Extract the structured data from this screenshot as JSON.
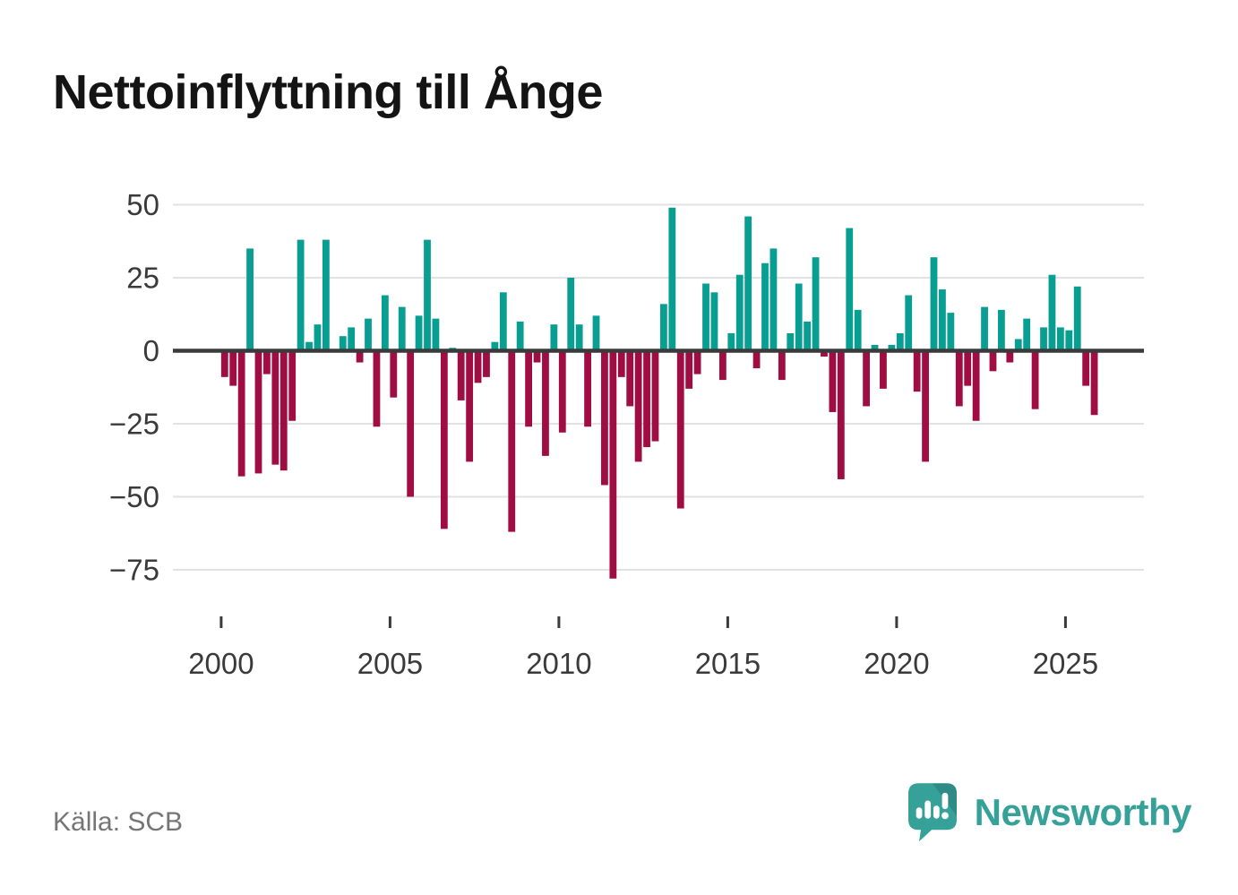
{
  "title": "Nettoinflyttning till Ånge",
  "source": {
    "label": "Källa: SCB"
  },
  "brand": {
    "name": "Newsworthy",
    "color": "#35A199",
    "icon": "newsworthy-speech-bubble-bar-chart"
  },
  "colors": {
    "positive": "#089E92",
    "negative": "#A00D42",
    "zero_line": "#3A3A3A",
    "gridline": "#E2E2E2",
    "axis_text": "#3A3A3A",
    "title_text": "#141414",
    "source_text": "#757575",
    "logo_dark_teal": "#2E8B85"
  },
  "chart_data": {
    "type": "bar",
    "title": "Nettoinflyttning till Ånge",
    "frequency": "quarterly",
    "x_start": "2000 Q1",
    "x_end": "2025 Q4",
    "xlabel": "",
    "ylabel": "",
    "ylim": [
      -85,
      55
    ],
    "grid": "horizontal",
    "legend": "none",
    "y_ticks": [
      50,
      25,
      0,
      -25,
      -50,
      -75
    ],
    "x_tick_labels": [
      "2000",
      "2005",
      "2010",
      "2015",
      "2020",
      "2025"
    ],
    "years": [
      {
        "year": 2000,
        "values": [
          -9,
          -12,
          -43,
          35
        ]
      },
      {
        "year": 2001,
        "values": [
          -42,
          -8,
          -39,
          -41
        ]
      },
      {
        "year": 2002,
        "values": [
          -24,
          38,
          3,
          9
        ]
      },
      {
        "year": 2003,
        "values": [
          38,
          0,
          5,
          8
        ]
      },
      {
        "year": 2004,
        "values": [
          -4,
          11,
          -26,
          19
        ]
      },
      {
        "year": 2005,
        "values": [
          -16,
          15,
          -50,
          12
        ]
      },
      {
        "year": 2006,
        "values": [
          38,
          11,
          -61,
          1
        ]
      },
      {
        "year": 2007,
        "values": [
          -17,
          -38,
          -11,
          -9
        ]
      },
      {
        "year": 2008,
        "values": [
          3,
          20,
          -62,
          10
        ]
      },
      {
        "year": 2009,
        "values": [
          -26,
          -4,
          -36,
          9
        ]
      },
      {
        "year": 2010,
        "values": [
          -28,
          25,
          9,
          -26
        ]
      },
      {
        "year": 2011,
        "values": [
          12,
          -46,
          -78,
          -9
        ]
      },
      {
        "year": 2012,
        "values": [
          -19,
          -38,
          -33,
          -31
        ]
      },
      {
        "year": 2013,
        "values": [
          16,
          49,
          -54,
          -13
        ]
      },
      {
        "year": 2014,
        "values": [
          -8,
          23,
          20,
          -10
        ]
      },
      {
        "year": 2015,
        "values": [
          6,
          26,
          46,
          -6
        ]
      },
      {
        "year": 2016,
        "values": [
          30,
          35,
          -10,
          6
        ]
      },
      {
        "year": 2017,
        "values": [
          23,
          10,
          32,
          -2
        ]
      },
      {
        "year": 2018,
        "values": [
          -21,
          -44,
          42,
          14
        ]
      },
      {
        "year": 2019,
        "values": [
          -19,
          2,
          -13,
          2
        ]
      },
      {
        "year": 2020,
        "values": [
          6,
          19,
          -14,
          -38
        ]
      },
      {
        "year": 2021,
        "values": [
          32,
          21,
          13,
          -19
        ]
      },
      {
        "year": 2022,
        "values": [
          -12,
          -24,
          15,
          -7
        ]
      },
      {
        "year": 2023,
        "values": [
          14,
          -4,
          4,
          11
        ]
      },
      {
        "year": 2024,
        "values": [
          -20,
          8,
          26,
          8
        ]
      },
      {
        "year": 2025,
        "values": [
          7,
          22,
          -12,
          -22
        ]
      }
    ]
  }
}
